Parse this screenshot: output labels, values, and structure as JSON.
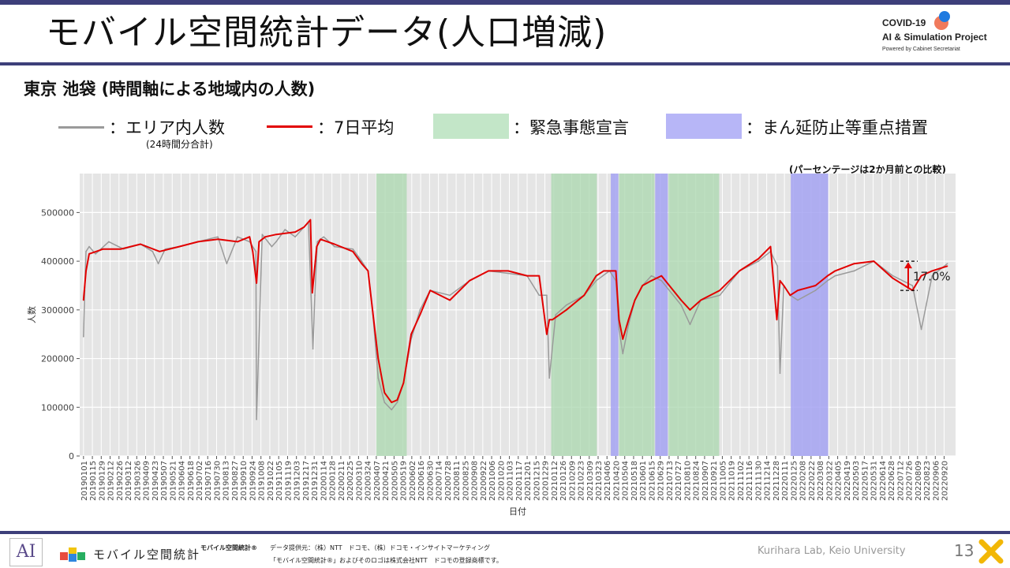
{
  "header": {
    "title": "モバイル空間統計データ(人口増減)",
    "logo_line1": "COVID-19",
    "logo_line2": "AI & Simulation Project",
    "logo_line3": "Powered by Cabinet Secretariat"
  },
  "subtitle": "東京 池袋 (時間軸による地域内の人数)",
  "legend": {
    "gray_label": "：エリア内人数",
    "gray_sub": "(24時間分合計)",
    "red_label": "：7日平均",
    "green_label": "：緊急事態宣言",
    "blue_label": "：まん延防止等重点措置"
  },
  "note": "(パーセンテージは2か月前との比較)",
  "change_label": "17.0%",
  "footer": {
    "brand": "モバイル空間統計",
    "brand_mark": "モバイル空間統計®",
    "provider": "データ提供元：（株）NTT　ドコモ、（株）ドコモ・インサイトマーケティング",
    "trademark": "「モバイル空間統計®」およびそのロゴは株式会社NTT　ドコモの登録商標です。",
    "lab": "Kurihara Lab, Keio University",
    "page": "13"
  },
  "colors": {
    "raw": "#9a9a9a",
    "avg": "#e20000",
    "emergency": "#a9d7ae",
    "priority": "#a4a3f2",
    "bg": "#e5e5e5"
  },
  "chart_data": {
    "type": "line",
    "xlabel": "日付",
    "ylabel": "人数",
    "ylim": [
      0,
      580000
    ],
    "yticks": [
      0,
      100000,
      200000,
      300000,
      400000,
      500000
    ],
    "ytick_labels": [
      "0",
      "100000",
      "200000",
      "300000",
      "400000",
      "500000"
    ],
    "x_tick_labels": [
      "20190101",
      "20190115",
      "20190129",
      "20190212",
      "20190226",
      "20190312",
      "20190326",
      "20190409",
      "20190423",
      "20190507",
      "20190521",
      "20190604",
      "20190618",
      "20190702",
      "20190716",
      "20190730",
      "20190813",
      "20190827",
      "20190910",
      "20190924",
      "20191008",
      "20191022",
      "20191105",
      "20191119",
      "20191203",
      "20191217",
      "20191231",
      "20200114",
      "20200128",
      "20200211",
      "20200225",
      "20200310",
      "20200324",
      "20200407",
      "20200421",
      "20200505",
      "20200519",
      "20200602",
      "20200616",
      "20200630",
      "20200714",
      "20200728",
      "20200811",
      "20200825",
      "20200908",
      "20200922",
      "20201006",
      "20201020",
      "20201103",
      "20201117",
      "20201201",
      "20201215",
      "20201229",
      "20210112",
      "20210126",
      "20210209",
      "20210223",
      "20210309",
      "20210323",
      "20210406",
      "20210420",
      "20210504",
      "20210518",
      "20210601",
      "20210615",
      "20210629",
      "20210713",
      "20210727",
      "20210810",
      "20210824",
      "20210907",
      "20210921",
      "20211005",
      "20211019",
      "20211102",
      "20211116",
      "20211130",
      "20211214",
      "20211228",
      "20220111",
      "20220125",
      "20220208",
      "20220222",
      "20220308",
      "20220322",
      "20220405",
      "20220419",
      "20220503",
      "20220517",
      "20220531",
      "20220614",
      "20220628",
      "20220712",
      "20220726",
      "20220809",
      "20220823",
      "20220906",
      "20220920"
    ],
    "emergency_periods": [
      [
        "20200407",
        "20200525"
      ],
      [
        "20210108",
        "20210321"
      ],
      [
        "20210425",
        "20210620"
      ],
      [
        "20210712",
        "20210930"
      ]
    ],
    "priority_periods": [
      [
        "20210412",
        "20210424"
      ],
      [
        "20210621",
        "20210711"
      ],
      [
        "20220121",
        "20220321"
      ]
    ],
    "series": [
      {
        "name": "エリア内人数",
        "x": [
          "20190101",
          "20190103",
          "20190105",
          "20190110",
          "20190120",
          "20190210",
          "20190305",
          "20190401",
          "20190420",
          "20190429",
          "20190510",
          "20190601",
          "20190701",
          "20190801",
          "20190815",
          "20190901",
          "20190920",
          "20190930",
          "20191001",
          "20191010",
          "20191025",
          "20191101",
          "20191115",
          "20191201",
          "20191215",
          "20191222",
          "20191229",
          "20200101",
          "20200105",
          "20200115",
          "20200201",
          "20200301",
          "20200315",
          "20200325",
          "20200401",
          "20200410",
          "20200420",
          "20200501",
          "20200510",
          "20200520",
          "20200601",
          "20200615",
          "20200701",
          "20200801",
          "20200901",
          "20201001",
          "20201101",
          "20201201",
          "20201220",
          "20210101",
          "20210105",
          "20210115",
          "20210201",
          "20210301",
          "20210320",
          "20210410",
          "20210420",
          "20210425",
          "20210501",
          "20210510",
          "20210520",
          "20210601",
          "20210615",
          "20210701",
          "20210801",
          "20210815",
          "20210901",
          "20211001",
          "20211101",
          "20211201",
          "20211220",
          "20211231",
          "20220104",
          "20220110",
          "20220120",
          "20220201",
          "20220301",
          "20220320",
          "20220401",
          "20220501",
          "20220601",
          "20220701",
          "20220801",
          "20220815",
          "20220901",
          "20220925"
        ],
        "values": [
          245000,
          340000,
          420000,
          430000,
          415000,
          440000,
          425000,
          435000,
          420000,
          395000,
          425000,
          430000,
          440000,
          450000,
          395000,
          450000,
          440000,
          420000,
          75000,
          455000,
          430000,
          440000,
          465000,
          450000,
          470000,
          480000,
          220000,
          330000,
          440000,
          450000,
          430000,
          425000,
          400000,
          380000,
          300000,
          160000,
          110000,
          95000,
          110000,
          150000,
          240000,
          300000,
          340000,
          330000,
          360000,
          380000,
          375000,
          370000,
          330000,
          330000,
          160000,
          290000,
          310000,
          330000,
          360000,
          380000,
          360000,
          260000,
          210000,
          270000,
          320000,
          350000,
          370000,
          360000,
          310000,
          270000,
          320000,
          330000,
          380000,
          400000,
          420000,
          390000,
          170000,
          350000,
          330000,
          320000,
          340000,
          360000,
          370000,
          380000,
          400000,
          370000,
          350000,
          260000,
          370000,
          395000
        ]
      },
      {
        "name": "7日平均",
        "x": [
          "20190101",
          "20190105",
          "20190110",
          "20190201",
          "20190301",
          "20190401",
          "20190501",
          "20190601",
          "20190701",
          "20190801",
          "20190901",
          "20190920",
          "20190925",
          "20191001",
          "20191005",
          "20191015",
          "20191101",
          "20191201",
          "20191215",
          "20191225",
          "20191228",
          "20200104",
          "20200110",
          "20200201",
          "20200301",
          "20200315",
          "20200325",
          "20200401",
          "20200410",
          "20200420",
          "20200501",
          "20200510",
          "20200520",
          "20200601",
          "20200615",
          "20200701",
          "20200801",
          "20200901",
          "20201001",
          "20201101",
          "20201201",
          "20201220",
          "20210101",
          "20210105",
          "20210110",
          "20210201",
          "20210301",
          "20210320",
          "20210401",
          "20210420",
          "20210425",
          "20210501",
          "20210510",
          "20210520",
          "20210601",
          "20210615",
          "20210701",
          "20210801",
          "20210815",
          "20210901",
          "20211001",
          "20211101",
          "20211201",
          "20211220",
          "20211230",
          "20220104",
          "20220110",
          "20220120",
          "20220201",
          "20220301",
          "20220320",
          "20220401",
          "20220501",
          "20220601",
          "20220701",
          "20220801",
          "20220815",
          "20220901",
          "20220925"
        ],
        "values": [
          320000,
          380000,
          415000,
          425000,
          425000,
          435000,
          420000,
          430000,
          440000,
          445000,
          440000,
          450000,
          420000,
          355000,
          440000,
          450000,
          455000,
          460000,
          470000,
          485000,
          335000,
          430000,
          445000,
          435000,
          420000,
          395000,
          380000,
          300000,
          200000,
          130000,
          110000,
          115000,
          150000,
          250000,
          290000,
          340000,
          320000,
          360000,
          380000,
          380000,
          370000,
          370000,
          250000,
          280000,
          280000,
          300000,
          330000,
          370000,
          380000,
          380000,
          280000,
          240000,
          280000,
          320000,
          350000,
          360000,
          370000,
          320000,
          300000,
          320000,
          340000,
          380000,
          405000,
          430000,
          280000,
          360000,
          350000,
          330000,
          340000,
          350000,
          370000,
          380000,
          395000,
          400000,
          365000,
          340000,
          370000,
          380000,
          390000
        ]
      }
    ]
  }
}
